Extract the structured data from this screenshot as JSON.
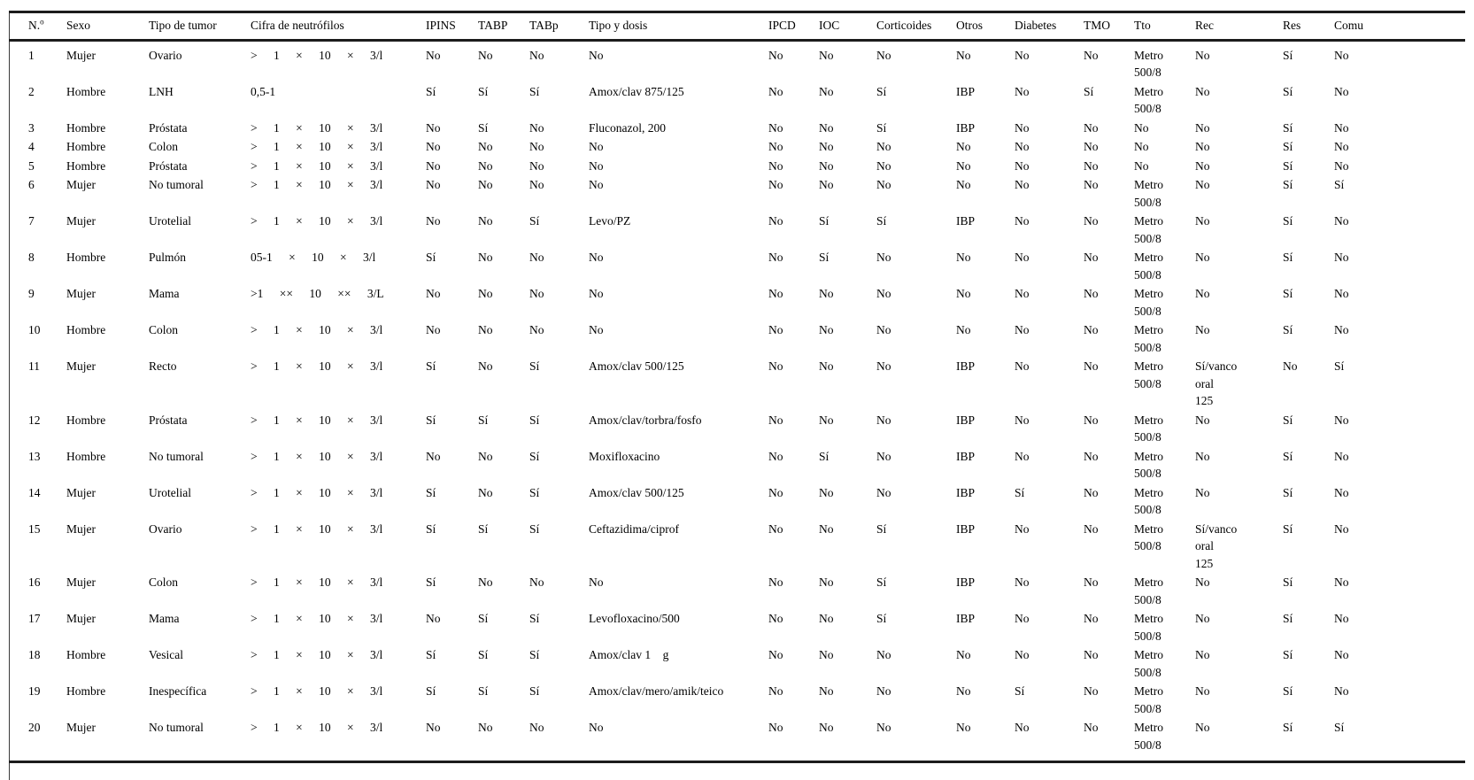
{
  "colors": {
    "text": "#000000",
    "rule": "#1c1c1c",
    "background": "#ffffff"
  },
  "table": {
    "headers": [
      {
        "text": "N.",
        "sup": "o"
      },
      "Sexo",
      "Tipo de tumor",
      "Cifra de neutrófilos",
      "IPINS",
      "TABP",
      "TABp",
      "Tipo y dosis",
      "IPCD",
      "IOC",
      "Corticoides",
      "Otros",
      "Diabetes",
      "TMO",
      "Tto",
      "Rec",
      "Res",
      "Comu"
    ],
    "rows": [
      [
        "1",
        "Mujer",
        "Ovario",
        "> 1 × 10 × 3/l",
        "No",
        "No",
        "No",
        "No",
        "No",
        "No",
        "No",
        "No",
        "No",
        "No",
        "Metro\n500/8",
        "No",
        "Sí",
        "No"
      ],
      [
        "2",
        "Hombre",
        "LNH",
        "0,5-1",
        "Sí",
        "Sí",
        "Sí",
        "Amox/clav 875/125",
        "No",
        "No",
        "Sí",
        "IBP",
        "No",
        "Sí",
        "Metro\n500/8",
        "No",
        "Sí",
        "No"
      ],
      [
        "3",
        "Hombre",
        "Próstata",
        "> 1 × 10 × 3/l",
        "No",
        "Sí",
        "No",
        "Fluconazol, 200",
        "No",
        "No",
        "Sí",
        "IBP",
        "No",
        "No",
        "No",
        "No",
        "Sí",
        "No"
      ],
      [
        "4",
        "Hombre",
        "Colon",
        "> 1 × 10 × 3/l",
        "No",
        "No",
        "No",
        "No",
        "No",
        "No",
        "No",
        "No",
        "No",
        "No",
        "No",
        "No",
        "Sí",
        "No"
      ],
      [
        "5",
        "Hombre",
        "Próstata",
        "> 1 × 10 × 3/l",
        "No",
        "No",
        "No",
        "No",
        "No",
        "No",
        "No",
        "No",
        "No",
        "No",
        "No",
        "No",
        "Sí",
        "No"
      ],
      [
        "6",
        "Mujer",
        "No tumoral",
        "> 1 × 10 × 3/l",
        "No",
        "No",
        "No",
        "No",
        "No",
        "No",
        "No",
        "No",
        "No",
        "No",
        "Metro\n500/8",
        "No",
        "Sí",
        "Sí"
      ],
      [
        "7",
        "Mujer",
        "Urotelial",
        "> 1 × 10 × 3/l",
        "No",
        "No",
        "Sí",
        "Levo/PZ",
        "No",
        "Sí",
        "Sí",
        "IBP",
        "No",
        "No",
        "Metro\n500/8",
        "No",
        "Sí",
        "No"
      ],
      [
        "8",
        "Hombre",
        "Pulmón",
        "05-1 × 10 × 3/l",
        "Sí",
        "No",
        "No",
        "No",
        "No",
        "Sí",
        "No",
        "No",
        "No",
        "No",
        "Metro\n500/8",
        "No",
        "Sí",
        "No"
      ],
      [
        "9",
        "Mujer",
        "Mama",
        ">1 ×× 10 ×× 3/L",
        "No",
        "No",
        "No",
        "No",
        "No",
        "No",
        "No",
        "No",
        "No",
        "No",
        "Metro\n500/8",
        "No",
        "Sí",
        "No"
      ],
      [
        "10",
        "Hombre",
        "Colon",
        "> 1 × 10 × 3/l",
        "No",
        "No",
        "No",
        "No",
        "No",
        "No",
        "No",
        "No",
        "No",
        "No",
        "Metro\n500/8",
        "No",
        "Sí",
        "No"
      ],
      [
        "11",
        "Mujer",
        "Recto",
        "> 1 × 10 × 3/l",
        "Sí",
        "No",
        "Sí",
        "Amox/clav 500/125",
        "No",
        "No",
        "No",
        "IBP",
        "No",
        "No",
        "Metro\n500/8",
        "Sí/vanco\noral\n125",
        "No",
        "Sí"
      ],
      [
        "12",
        "Hombre",
        "Próstata",
        "> 1 × 10 × 3/l",
        "Sí",
        "Sí",
        "Sí",
        "Amox/clav/torbra/fosfo",
        "No",
        "No",
        "No",
        "IBP",
        "No",
        "No",
        "Metro\n500/8",
        "No",
        "Sí",
        "No"
      ],
      [
        "13",
        "Hombre",
        "No tumoral",
        "> 1 × 10 × 3/l",
        "No",
        "No",
        "Sí",
        "Moxifloxacino",
        "No",
        "Sí",
        "No",
        "IBP",
        "No",
        "No",
        "Metro\n500/8",
        "No",
        "Sí",
        "No"
      ],
      [
        "14",
        "Mujer",
        "Urotelial",
        "> 1 × 10 × 3/l",
        "Sí",
        "No",
        "Sí",
        "Amox/clav 500/125",
        "No",
        "No",
        "No",
        "IBP",
        "Sí",
        "No",
        "Metro\n500/8",
        "No",
        "Sí",
        "No"
      ],
      [
        "15",
        "Mujer",
        "Ovario",
        "> 1 × 10 × 3/l",
        "Sí",
        "Sí",
        "Sí",
        "Ceftazidima/ciprof",
        "No",
        "No",
        "Sí",
        "IBP",
        "No",
        "No",
        "Metro\n500/8",
        "Sí/vanco\noral\n125",
        "Sí",
        "No"
      ],
      [
        "16",
        "Mujer",
        "Colon",
        "> 1 × 10 × 3/l",
        "Sí",
        "No",
        "No",
        "No",
        "No",
        "No",
        "Sí",
        "IBP",
        "No",
        "No",
        "Metro\n500/8",
        "No",
        "Sí",
        "No"
      ],
      [
        "17",
        "Mujer",
        "Mama",
        "> 1 × 10 × 3/l",
        "No",
        "Sí",
        "Sí",
        "Levofloxacino/500",
        "No",
        "No",
        "Sí",
        "IBP",
        "No",
        "No",
        "Metro\n500/8",
        "No",
        "Sí",
        "No"
      ],
      [
        "18",
        "Hombre",
        "Vesical",
        "> 1 × 10 × 3/l",
        "Sí",
        "Sí",
        "Sí",
        "Amox/clav 1    g",
        "No",
        "No",
        "No",
        "No",
        "No",
        "No",
        "Metro\n500/8",
        "No",
        "Sí",
        "No"
      ],
      [
        "19",
        "Hombre",
        "Inespecífica",
        "> 1 × 10 × 3/l",
        "Sí",
        "Sí",
        "Sí",
        "Amox/clav/mero/amik/teico",
        "No",
        "No",
        "No",
        "No",
        "Sí",
        "No",
        "Metro\n500/8",
        "No",
        "Sí",
        "No"
      ],
      [
        "20",
        "Mujer",
        "No tumoral",
        "> 1 × 10 × 3/l",
        "No",
        "No",
        "No",
        "No",
        "No",
        "No",
        "No",
        "No",
        "No",
        "No",
        "Metro\n500/8",
        "No",
        "Sí",
        "Sí"
      ]
    ]
  }
}
